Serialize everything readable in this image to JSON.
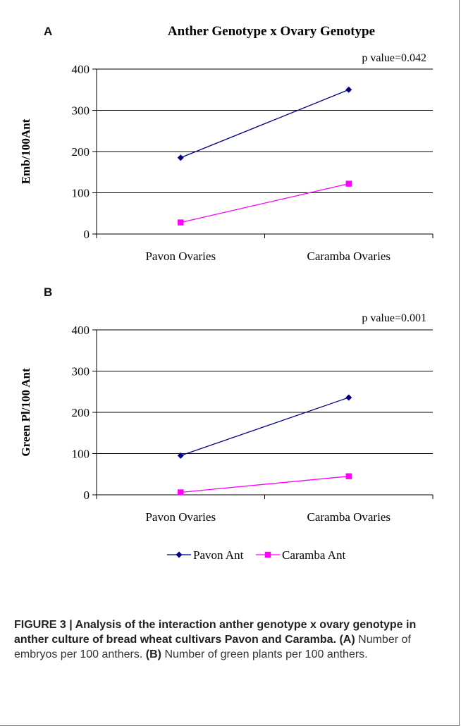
{
  "chart_data": [
    {
      "type": "line",
      "panel_label": "A",
      "title": "Anther Genotype x Ovary Genotype",
      "annotation": "p value=0.042",
      "ylabel": "Emb/100Ant",
      "categories": [
        "Pavon Ovaries",
        "Caramba Ovaries"
      ],
      "ylim": [
        0,
        400
      ],
      "yticks": [
        0,
        100,
        200,
        300,
        400
      ],
      "grid": true,
      "series": [
        {
          "name": "Pavon Ant",
          "values": [
            185,
            350
          ],
          "color": "#000080",
          "marker": "diamond"
        },
        {
          "name": "Caramba Ant",
          "values": [
            28,
            122
          ],
          "color": "#ff00ff",
          "marker": "square"
        }
      ]
    },
    {
      "type": "line",
      "panel_label": "B",
      "annotation": "p value=0.001",
      "ylabel": "Green Pl/100 Ant",
      "categories": [
        "Pavon Ovaries",
        "Caramba Ovaries"
      ],
      "ylim": [
        0,
        400
      ],
      "yticks": [
        0,
        100,
        200,
        300,
        400
      ],
      "grid": true,
      "series": [
        {
          "name": "Pavon Ant",
          "values": [
            95,
            236
          ],
          "color": "#000080",
          "marker": "diamond"
        },
        {
          "name": "Caramba Ant",
          "values": [
            6,
            45
          ],
          "color": "#ff00ff",
          "marker": "square"
        }
      ]
    }
  ],
  "legend": {
    "placement": "bottom",
    "items": [
      {
        "label": "Pavon Ant",
        "color": "#000080",
        "marker": "diamond"
      },
      {
        "label": "Caramba Ant",
        "color": "#ff00ff",
        "marker": "square"
      }
    ]
  },
  "caption": {
    "figure_label": "FIGURE 3 | Analysis of the interaction anther genotype x ovary genotype in anther culture of bread wheat cultivars Pavon and Caramba.",
    "part_a_label": "(A)",
    "part_a_text": "Number of embryos per 100 anthers.",
    "part_b_label": "(B)",
    "part_b_text": "Number of green plants per 100 anthers."
  }
}
